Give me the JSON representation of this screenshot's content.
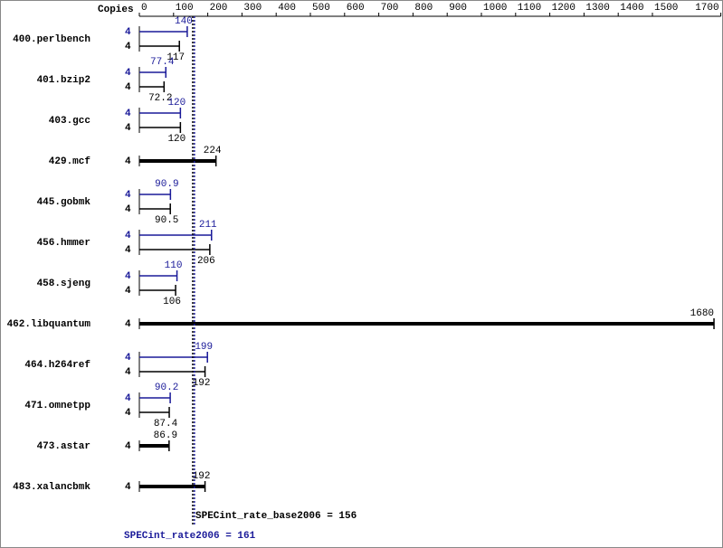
{
  "chart_data": {
    "type": "hbar",
    "axis_label": "Copies",
    "categories": [
      "400.perlbench",
      "401.bzip2",
      "403.gcc",
      "429.mcf",
      "445.gobmk",
      "456.hmmer",
      "458.sjeng",
      "462.libquantum",
      "464.h264ref",
      "471.omnetpp",
      "473.astar",
      "483.xalancbmk"
    ],
    "series": [
      {
        "color": "#1a1a99",
        "copies": [
          4,
          4,
          4,
          null,
          4,
          4,
          4,
          null,
          4,
          4,
          null,
          null
        ],
        "values": [
          140,
          77.4,
          120,
          null,
          90.9,
          211,
          110,
          null,
          199,
          90.2,
          null,
          null
        ]
      },
      {
        "color": "#000000",
        "copies": [
          4,
          4,
          4,
          4,
          4,
          4,
          4,
          4,
          4,
          4,
          4,
          4
        ],
        "values": [
          117,
          72.2,
          120,
          224,
          90.5,
          206,
          106,
          1680,
          192,
          87.4,
          86.9,
          192
        ]
      }
    ],
    "xlim": [
      0,
      1700
    ],
    "xticks": [
      0,
      100,
      200,
      300,
      400,
      500,
      600,
      700,
      800,
      900,
      1000,
      1100,
      1200,
      1300,
      1400,
      1500,
      1700
    ],
    "references": [
      {
        "label": "SPECint_rate_base2006 = 156",
        "value": 156,
        "color": "#000000"
      },
      {
        "label": "SPECint_rate2006 = 161",
        "value": 161,
        "color": "#1a1a99"
      }
    ]
  }
}
